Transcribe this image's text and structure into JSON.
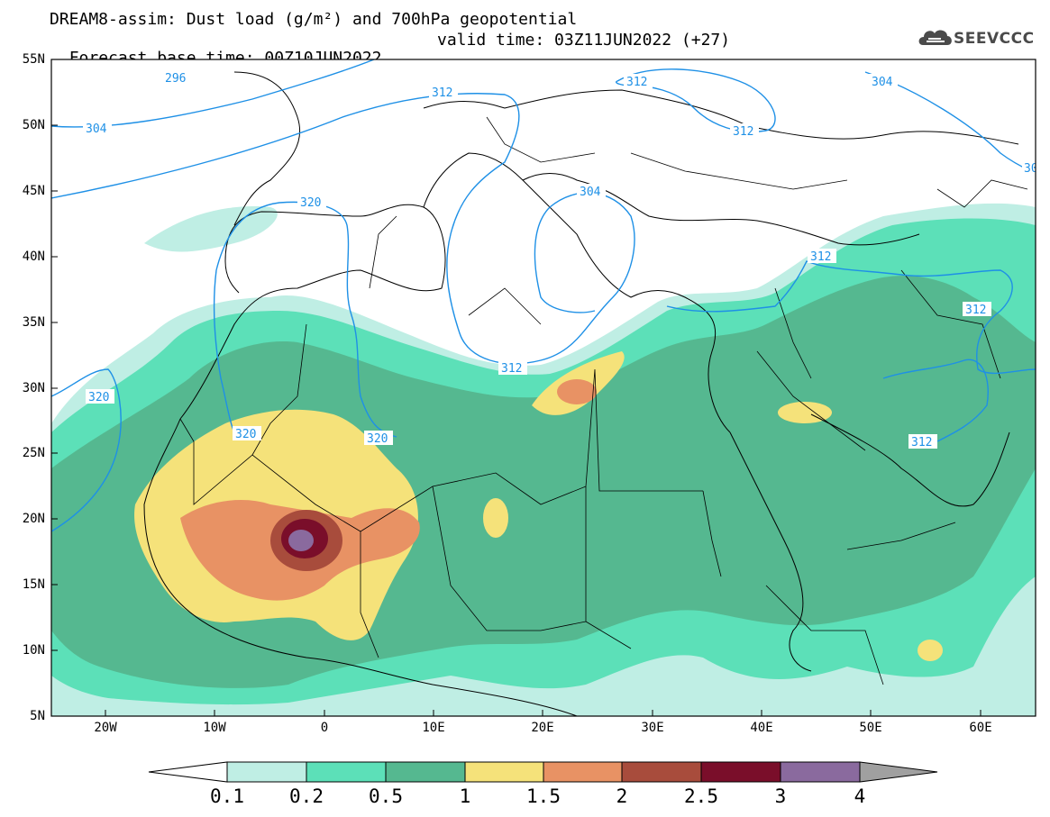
{
  "title": {
    "line1": "DREAM8-assim: Dust load (g/m²) and 700hPa geopotential",
    "line2_base": "Forecast base time: 00Z10JUN2022",
    "line2_valid": "valid time: 03Z11JUN2022 (+27)"
  },
  "logo": {
    "text": "SEEVCCC",
    "icon": "cloud-logo-icon"
  },
  "map": {
    "lat_labels": [
      "55N",
      "50N",
      "45N",
      "40N",
      "35N",
      "30N",
      "25N",
      "20N",
      "15N",
      "10N",
      "5N"
    ],
    "lon_labels": [
      "20W",
      "10W",
      "0",
      "10E",
      "20E",
      "30E",
      "40E",
      "50E",
      "60E"
    ],
    "contour_labels": [
      "296",
      "304",
      "312",
      "312",
      "312",
      "304",
      "304",
      "30",
      "320",
      "320",
      "320",
      "320",
      "312",
      "312",
      "312",
      "312"
    ],
    "contour_color": "#1e90e6"
  },
  "colorbar": {
    "labels": [
      "0.1",
      "0.2",
      "0.5",
      "1",
      "1.5",
      "2",
      "2.5",
      "3",
      "4"
    ],
    "colors": [
      "#ffffff",
      "#bfeee4",
      "#5ce0b8",
      "#55b890",
      "#f5e27a",
      "#e89264",
      "#a84c3c",
      "#7a0e2a",
      "#8a6a9e",
      "#a0a0a0"
    ]
  }
}
